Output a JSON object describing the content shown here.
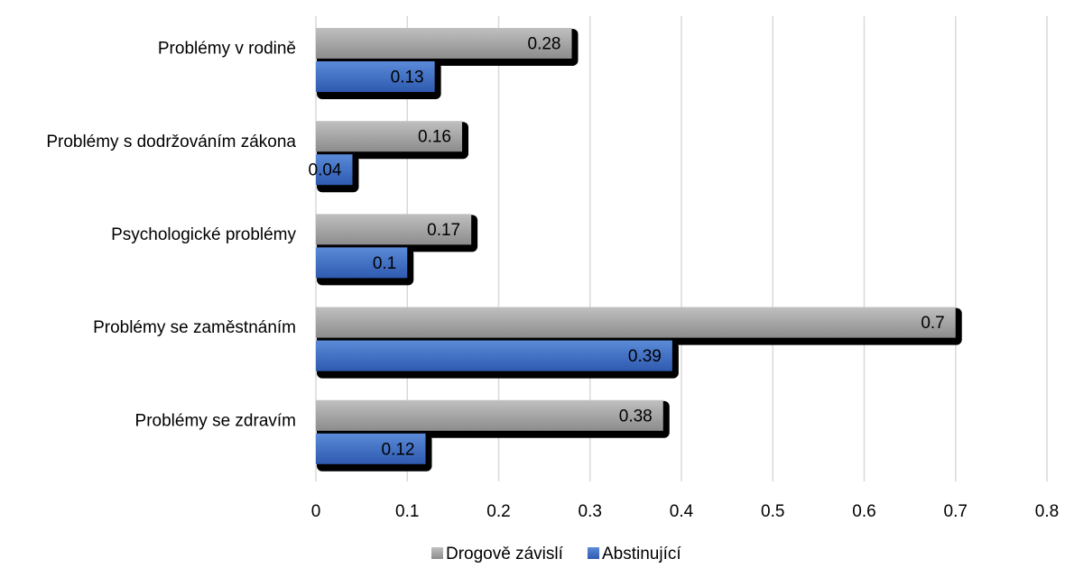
{
  "chart_data": {
    "type": "bar",
    "orientation": "horizontal",
    "categories": [
      "Problémy v rodině",
      "Problémy s dodržováním zákona",
      "Psychologické problémy",
      "Problémy se zaměstnáním",
      "Problémy se zdravím"
    ],
    "series": [
      {
        "name": "Drogově závislí",
        "color": "#a6a6a6",
        "values": [
          0.28,
          0.16,
          0.17,
          0.7,
          0.38
        ],
        "labels": [
          "0.28",
          "0.16",
          "0.17",
          "0.7",
          "0.38"
        ]
      },
      {
        "name": "Abstinující",
        "color": "#4472c4",
        "values": [
          0.13,
          0.04,
          0.1,
          0.39,
          0.12
        ],
        "labels": [
          "0.13",
          "0.04",
          "0.1",
          "0.39",
          "0.12"
        ]
      }
    ],
    "xlim": [
      0,
      0.8
    ],
    "ticks": [
      0,
      0.1,
      0.2,
      0.3,
      0.4,
      0.5,
      0.6,
      0.7,
      0.8
    ],
    "tick_labels": [
      "0",
      "0.1",
      "0.2",
      "0.3",
      "0.4",
      "0.5",
      "0.6",
      "0.7",
      "0.8"
    ],
    "title": "",
    "xlabel": "",
    "ylabel": "",
    "grid": "vertical",
    "legend_position": "bottom"
  }
}
